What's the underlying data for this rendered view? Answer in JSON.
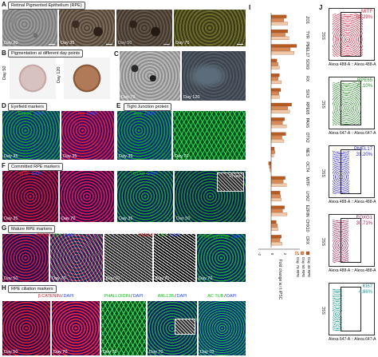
{
  "panels": {
    "A": {
      "letter": "A",
      "title": "Retinal Pigmented Epithelium (RPE)",
      "days": [
        "Day 20",
        "Day 35",
        "Day 50",
        "Day 70"
      ]
    },
    "B": {
      "letter": "B",
      "title": "Pigmentation at different day points",
      "side_labels": [
        "Day 50",
        "Day 120"
      ]
    },
    "C": {
      "letter": "C",
      "days": [
        "Day 70",
        "Day 120"
      ]
    },
    "D": {
      "letter": "D",
      "title": "Eyefield markers",
      "images": [
        {
          "stain": [
            "EZRIN",
            "DAPI"
          ],
          "day": "Day 35"
        },
        {
          "stain": [
            "RX",
            "DAPI"
          ],
          "day": "Day 35"
        }
      ]
    },
    "E": {
      "letter": "E",
      "title": "Tight Junction protein",
      "images": [
        {
          "stain": [
            "ZO1",
            "DAPI"
          ],
          "day": "Day 35"
        },
        {
          "stain": [],
          "day": "Day 70"
        }
      ]
    },
    "F": {
      "letter": "F",
      "title": "Committed RPE markers",
      "images": [
        {
          "stain": [
            "MITF",
            "DAPI"
          ],
          "day": "Day 35"
        },
        {
          "stain": [],
          "day": "Day 70"
        },
        {
          "stain": [
            "OTX2",
            "DAPI"
          ],
          "day": "Day 35"
        },
        {
          "stain": [],
          "day": "Day 50",
          "inset": "Phase"
        }
      ]
    },
    "G": {
      "letter": "G",
      "title": "Mature RPE markers",
      "images": [
        {
          "stain": [
            "RPE65",
            "ZO1",
            "DAPI"
          ],
          "day": "Day 50"
        },
        {
          "stain": [],
          "day": "Day 70"
        },
        {
          "stain": [
            "PMEL17",
            "ZO1",
            "DAPI"
          ],
          "day": "Day 50"
        },
        {
          "stain": [],
          "day": "Day 70"
        },
        {
          "stain": [
            "TYROSINASE",
            "DAPI"
          ],
          "day": "Day 70"
        }
      ]
    },
    "H": {
      "letter": "H",
      "title": "RPE ciliation markers",
      "images": [
        {
          "stain": [
            "β CATENIN",
            "DAPI"
          ],
          "day": "Day 50"
        },
        {
          "stain": [],
          "day": "Day 70"
        },
        {
          "stain": [
            "PHALLOIDIN",
            "DAPI"
          ],
          "day": "Day 70"
        },
        {
          "stain": [
            "ARL13B",
            "DAPI"
          ],
          "day": "Day 70"
        },
        {
          "stain": [
            "AC TUB",
            "DAPI"
          ],
          "day": "Day 70"
        }
      ]
    },
    "I": {
      "letter": "I"
    },
    "J": {
      "letter": "J"
    }
  },
  "stain_colors": {
    "EZRIN": "#14c414",
    "RX": "#e0202a",
    "ZO1": "#14c414",
    "MITF": "#e0202a",
    "OTX2": "#14c414",
    "RPE65": "#e0202a",
    "PMEL17": "#e0202a",
    "TYROSINASE": "#14c414",
    "β CATENIN": "#e0202a",
    "PHALLOIDIN": "#14c414",
    "ARL13B": "#14c414",
    "AC TUB": "#14c414",
    "DAPI": "#2a4bff"
  },
  "chart_data": [
    {
      "type": "bar",
      "orientation": "horizontal",
      "categories": [
        "ZO1",
        "TYR",
        "PMEL17",
        "SOX9",
        "RX",
        "SIX3",
        "RPE65",
        "PAX6",
        "OTX2",
        "NES",
        "OCT4",
        "MITF",
        "LHX2",
        "EZRIN",
        "CHX10",
        "CRX"
      ],
      "series": [
        {
          "name": "Day 40 RPE",
          "color": "#b55a20",
          "values": [
            2.4,
            2.6,
            4.0,
            0.9,
            1.3,
            1.5,
            3.2,
            2.1,
            2.3,
            0.5,
            -0.4,
            2.2,
            1.4,
            2.1,
            0.8,
            1.6
          ]
        },
        {
          "name": "Day 50 RPE",
          "color": "#d98a55",
          "values": [
            2.0,
            2.2,
            3.0,
            1.1,
            1.1,
            1.2,
            2.6,
            1.8,
            1.7,
            0.6,
            -0.3,
            1.9,
            1.5,
            1.8,
            1.0,
            1.4
          ]
        },
        {
          "name": "Day 70 RPE",
          "color": "#f1c9a6",
          "values": [
            2.6,
            2.8,
            3.6,
            1.3,
            1.6,
            1.3,
            2.9,
            2.4,
            2.0,
            0.4,
            -0.2,
            2.4,
            1.6,
            2.5,
            1.1,
            1.7
          ]
        }
      ],
      "xlabel": "Fold change w.r.t iPSC",
      "xticks": [
        "-2",
        "0",
        "2",
        "4"
      ],
      "xlim": [
        -2,
        4.5
      ]
    },
    {
      "type": "scatter",
      "plots": [
        {
          "marker": "MITF",
          "percent": "81.29%",
          "color": "#d0253c"
        },
        {
          "marker": "RPE65",
          "percent": "73.10%",
          "color": "#2a8a2a"
        },
        {
          "marker": "PMEL17",
          "percent": "31.20%",
          "color": "#2a2acc"
        },
        {
          "marker": "FOXG1",
          "percent": "30.71%",
          "color": "#a0205a"
        },
        {
          "marker": "KI67",
          "percent": "4.86%",
          "color": "#1a9a9a"
        }
      ],
      "xlabels": [
        "Alexa 488-A :: Alexa 488-A",
        "Alexa 647-A :: Alexa 647-A",
        "Alexa 488-A :: Alexa 488-A",
        "Alexa 488-A :: Alexa 488-A",
        "Alexa 647-A :: Alexa 647-A"
      ],
      "ylabel": "SSC"
    }
  ]
}
